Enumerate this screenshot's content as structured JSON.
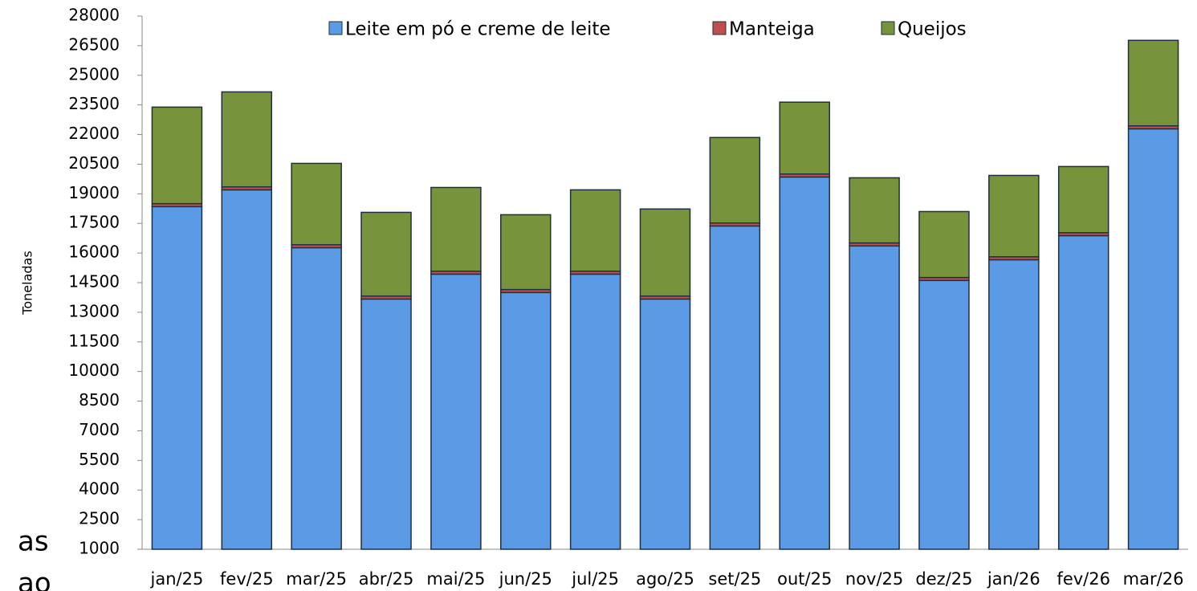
{
  "chart_data": {
    "type": "stacked_bar",
    "y_label": "Toneladas",
    "categories": [
      "jan/25",
      "fev/25",
      "mar/25",
      "abr/25",
      "mai/25",
      "jun/25",
      "jul/25",
      "ago/25",
      "set/25",
      "out/25",
      "nov/25",
      "dez/25",
      "jan/26",
      "fev/26",
      "mar/26"
    ],
    "series": [
      {
        "name": "Leite em pó e creme de leite",
        "color": "#5b9be6",
        "values": [
          17350,
          18200,
          15270,
          12670,
          13930,
          13000,
          13930,
          12670,
          16370,
          18850,
          15360,
          13610,
          14660,
          15880,
          21290
        ]
      },
      {
        "name": "Manteiga",
        "color": "#c0504d",
        "values": [
          150,
          150,
          150,
          150,
          150,
          150,
          150,
          150,
          150,
          150,
          150,
          150,
          150,
          150,
          150
        ]
      },
      {
        "name": "Queijos",
        "color": "#77933c",
        "values": [
          4890,
          4810,
          4120,
          4240,
          4240,
          3790,
          4120,
          4410,
          4330,
          3640,
          3300,
          3340,
          4120,
          3350,
          4330
        ]
      }
    ],
    "ylim": [
      1000,
      28000
    ],
    "yticks": [
      1000,
      2500,
      4000,
      5500,
      7000,
      8500,
      10000,
      11500,
      13000,
      14500,
      16000,
      17500,
      19000,
      20500,
      22000,
      23500,
      25000,
      26500,
      28000
    ],
    "legend": "top",
    "fragments": [
      "as",
      "ao"
    ]
  }
}
